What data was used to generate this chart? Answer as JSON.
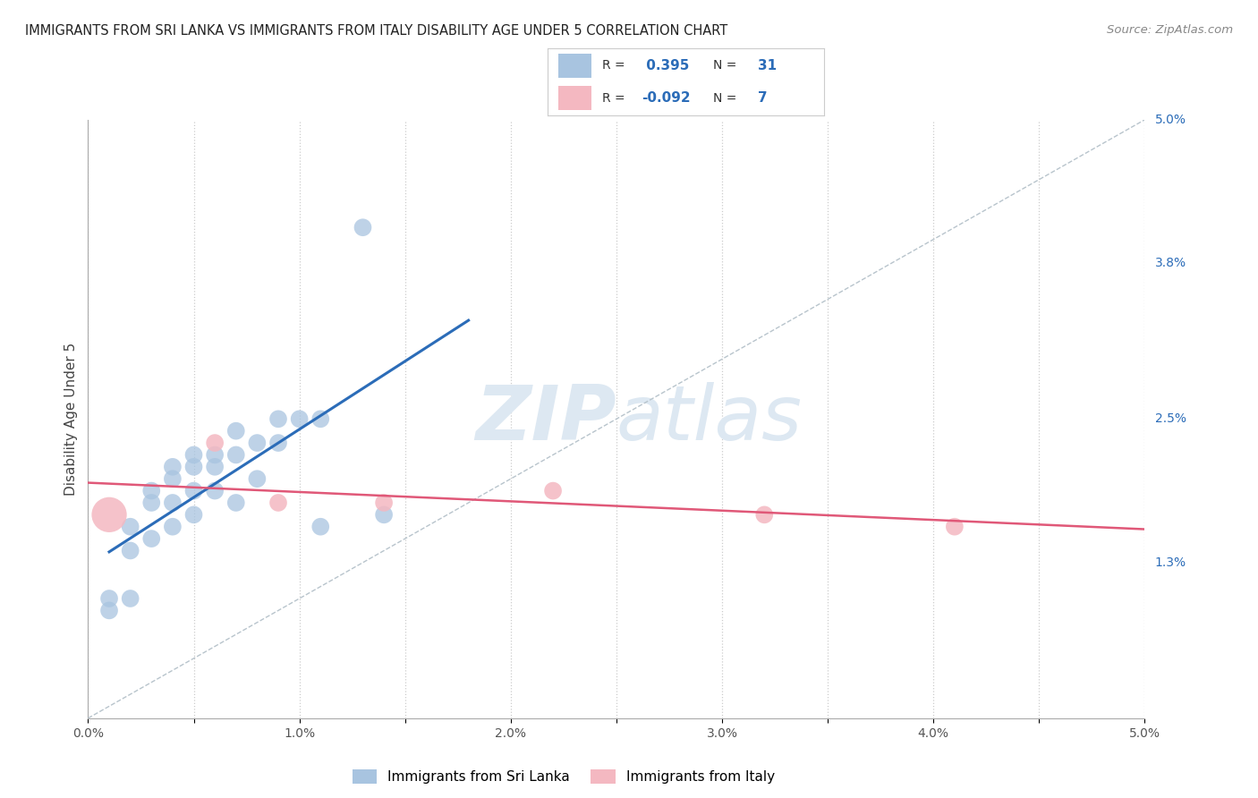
{
  "title": "IMMIGRANTS FROM SRI LANKA VS IMMIGRANTS FROM ITALY DISABILITY AGE UNDER 5 CORRELATION CHART",
  "source": "Source: ZipAtlas.com",
  "ylabel": "Disability Age Under 5",
  "xlim": [
    0.0,
    0.05
  ],
  "ylim": [
    0.0,
    0.05
  ],
  "xtick_vals": [
    0.0,
    0.005,
    0.01,
    0.015,
    0.02,
    0.025,
    0.03,
    0.035,
    0.04,
    0.045,
    0.05
  ],
  "xtick_labels": [
    "0.0%",
    "",
    "1.0%",
    "",
    "2.0%",
    "",
    "3.0%",
    "",
    "4.0%",
    "",
    "5.0%"
  ],
  "ytick_vals_right": [
    0.013,
    0.025,
    0.038,
    0.05
  ],
  "ytick_labels_right": [
    "1.3%",
    "2.5%",
    "3.8%",
    "5.0%"
  ],
  "sri_lanka_R": 0.395,
  "sri_lanka_N": 31,
  "italy_R": -0.092,
  "italy_N": 7,
  "sri_lanka_color": "#a8c4e0",
  "italy_color": "#f4b8c1",
  "sri_lanka_line_color": "#2b6cb8",
  "italy_line_color": "#e05878",
  "diag_color": "#b8c4cc",
  "legend_label_sri": "Immigrants from Sri Lanka",
  "legend_label_italy": "Immigrants from Italy",
  "sri_lanka_x": [
    0.001,
    0.001,
    0.002,
    0.002,
    0.002,
    0.003,
    0.003,
    0.003,
    0.004,
    0.004,
    0.004,
    0.004,
    0.005,
    0.005,
    0.005,
    0.005,
    0.006,
    0.006,
    0.006,
    0.007,
    0.007,
    0.007,
    0.008,
    0.008,
    0.009,
    0.009,
    0.01,
    0.011,
    0.011,
    0.013,
    0.014
  ],
  "sri_lanka_y": [
    0.01,
    0.009,
    0.016,
    0.014,
    0.01,
    0.019,
    0.018,
    0.015,
    0.021,
    0.02,
    0.018,
    0.016,
    0.022,
    0.021,
    0.019,
    0.017,
    0.022,
    0.021,
    0.019,
    0.024,
    0.022,
    0.018,
    0.023,
    0.02,
    0.025,
    0.023,
    0.025,
    0.025,
    0.016,
    0.041,
    0.017
  ],
  "sri_lanka_dot_size": 200,
  "italy_x": [
    0.001,
    0.006,
    0.009,
    0.014,
    0.022,
    0.032,
    0.041
  ],
  "italy_y": [
    0.017,
    0.023,
    0.018,
    0.018,
    0.019,
    0.017,
    0.016
  ],
  "italy_dot_sizes": [
    800,
    200,
    200,
    200,
    200,
    200,
    200
  ],
  "background_color": "#ffffff",
  "grid_color": "#cccccc",
  "watermark_color": "#dde8f2"
}
